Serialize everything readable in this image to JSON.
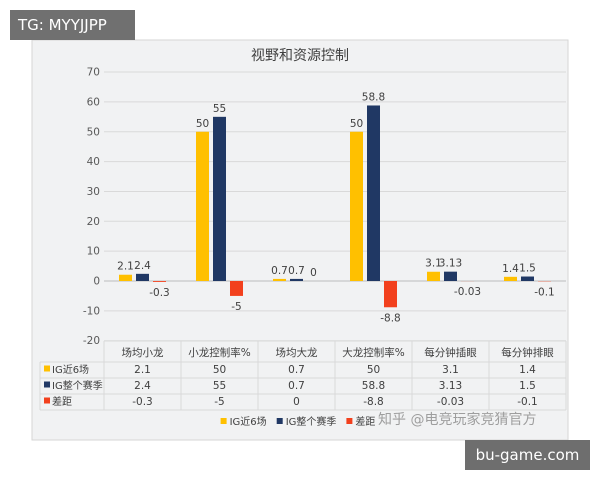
{
  "corner_tags": {
    "top_left": "TG: MYYJJPP",
    "bottom_right": "bu-game.com"
  },
  "watermark": "知乎 @电竞玩家竞猜官方",
  "chart_data": {
    "type": "bar",
    "title": "视野和资源控制",
    "categories": [
      "场均小龙",
      "小龙控制率%",
      "场均大龙",
      "大龙控制率%",
      "每分钟插眼",
      "每分钟排眼"
    ],
    "series": [
      {
        "name": "IG近6场",
        "color": "#ffc000",
        "values": [
          2.1,
          50,
          0.7,
          50,
          3.1,
          1.4
        ]
      },
      {
        "name": "IG整个赛季",
        "color": "#203864",
        "values": [
          2.4,
          55,
          0.7,
          58.8,
          3.13,
          1.5
        ]
      },
      {
        "name": "差距",
        "color": "#f2401d",
        "values": [
          -0.3,
          -5,
          0,
          -8.8,
          -0.03,
          -0.1
        ]
      }
    ],
    "ylim": [
      -20,
      70
    ],
    "yticks": [
      70,
      60,
      50,
      40,
      30,
      20,
      10,
      0,
      -10,
      -20
    ],
    "grid": true,
    "data_labels": true,
    "data_table": true,
    "legend": "bottom"
  }
}
